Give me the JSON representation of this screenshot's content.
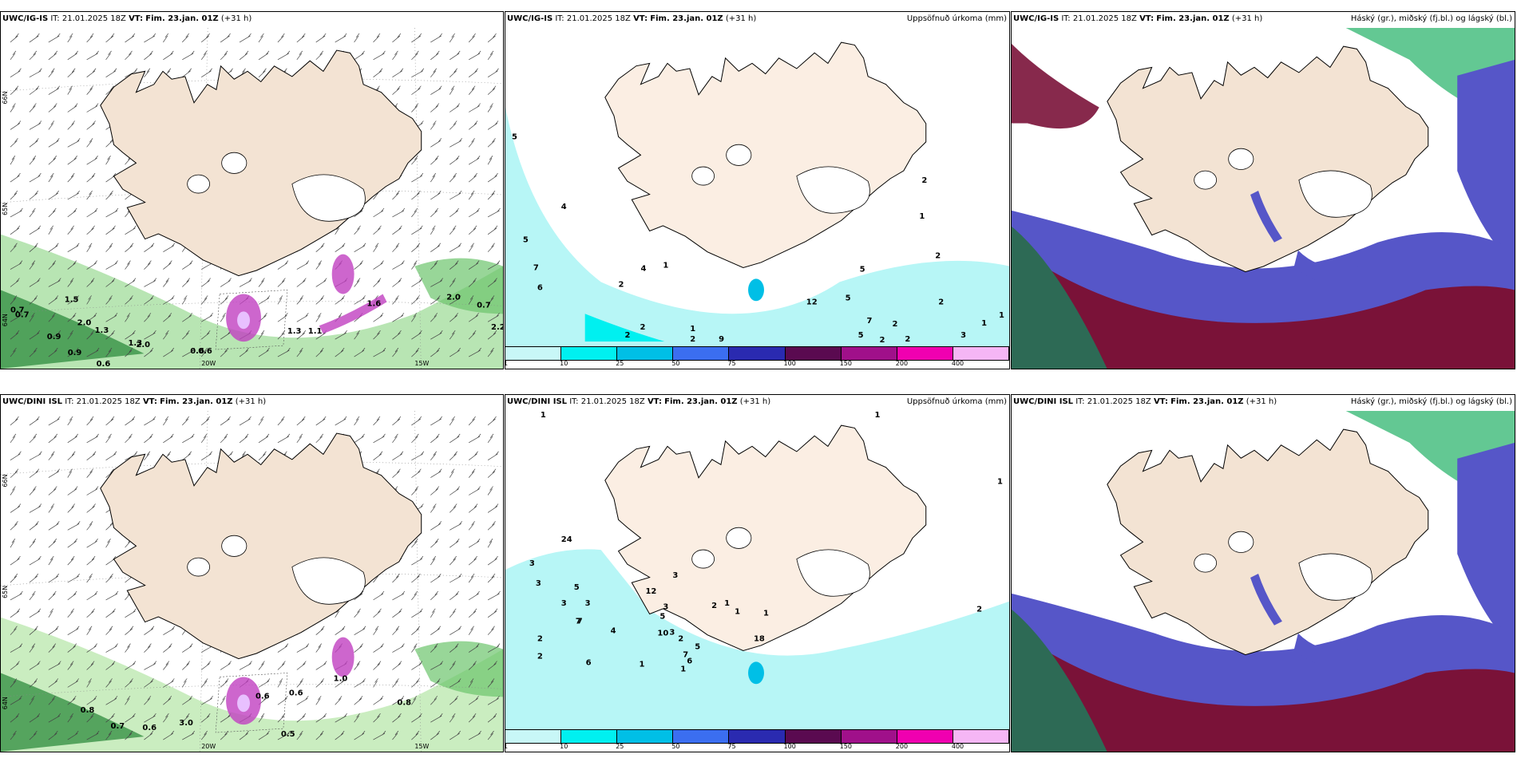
{
  "panels": [
    {
      "model": "UWC/IG-IS",
      "it_label": "IT:",
      "it_value": "21.01.2025 18Z",
      "vt_label": "VT:",
      "vt_value": "Fim. 23.jan. 01Z",
      "lead": "(+31 h)",
      "title_right": "",
      "kind": "wind",
      "lon_labels": [
        "20W",
        "15W"
      ],
      "lat_labels": [
        "66N",
        "65N",
        "64N"
      ],
      "values": [
        "0.7",
        "0.7",
        "0.9",
        "0.9",
        "2.0",
        "1.3",
        "0.6",
        "1.3",
        "2.0",
        "0.6",
        "0.6",
        "1.5",
        "2.0",
        "0.7",
        "2.2",
        "1.1",
        "1.3",
        "1.6"
      ]
    },
    {
      "model": "UWC/IG-IS",
      "it_label": "IT:",
      "it_value": "21.01.2025 18Z",
      "vt_label": "VT:",
      "vt_value": "Fim. 23.jan. 01Z",
      "lead": "(+31 h)",
      "title_right": "Uppsöfnuð úrkoma (mm)",
      "kind": "precip",
      "values": [
        "5",
        "4",
        "5",
        "7",
        "6",
        "2",
        "4",
        "1",
        "2",
        "2",
        "2",
        "1",
        "9",
        "12",
        "5",
        "5",
        "5",
        "2",
        "7",
        "2",
        "2",
        "2",
        "3",
        "1",
        "1",
        "2",
        "1",
        "2"
      ]
    },
    {
      "model": "UWC/IG-IS",
      "it_label": "IT:",
      "it_value": "21.01.2025 18Z",
      "vt_label": "VT:",
      "vt_value": "Fim. 23.jan. 01Z",
      "lead": "(+31 h)",
      "title_right": "Háský (gr.), miðský (fj.bl.) og lágský (bl.)",
      "kind": "cloud"
    },
    {
      "model": "UWC/DINI ISL",
      "it_label": "IT:",
      "it_value": "21.01.2025 18Z",
      "vt_label": "VT:",
      "vt_value": "Fim. 23.jan. 01Z",
      "lead": "(+31 h)",
      "title_right": "",
      "kind": "wind",
      "lon_labels": [
        "20W",
        "15W"
      ],
      "lat_labels": [
        "66N",
        "65N",
        "64N"
      ],
      "values": [
        "0.8",
        "0.7",
        "0.6",
        "3.0",
        "0.5",
        "0.8",
        "0.6",
        "0.6",
        "1.0"
      ]
    },
    {
      "model": "UWC/DINI ISL",
      "it_label": "IT:",
      "it_value": "21.01.2025 18Z",
      "vt_label": "VT:",
      "vt_value": "Fim. 23.jan. 01Z",
      "lead": "(+31 h)",
      "title_right": "Uppsöfnuð úrkoma (mm)",
      "kind": "precip",
      "values": [
        "1",
        "1",
        "1",
        "2",
        "3",
        "3",
        "3",
        "3",
        "24",
        "5",
        "7",
        "2",
        "7",
        "4",
        "2",
        "6",
        "12",
        "3",
        "3",
        "3",
        "5",
        "10",
        "2",
        "7",
        "6",
        "5",
        "1",
        "1",
        "2",
        "1",
        "1",
        "1",
        "18"
      ]
    },
    {
      "model": "UWC/DINI ISL",
      "it_label": "IT:",
      "it_value": "21.01.2025 18Z",
      "vt_label": "VT:",
      "vt_value": "Fim. 23.jan. 01Z",
      "lead": "(+31 h)",
      "title_right": "Háský (gr.), miðský (fj.bl.) og lágský (bl.)",
      "kind": "cloud"
    }
  ],
  "precip_legend": {
    "ticks": [
      "1",
      "10",
      "25",
      "50",
      "75",
      "100",
      "150",
      "200",
      "400"
    ],
    "colors": [
      "#c8f7f7",
      "#00f0f0",
      "#00bfe6",
      "#3b6ef0",
      "#2a2ab0",
      "#5a0a50",
      "#a0108a",
      "#f000b0",
      "#f5b6f5"
    ]
  },
  "colors": {
    "land": "#f3e3d3",
    "land_precip": "#fbeee3",
    "sea_precip": "#b7f6f6",
    "cloud_high": "#3cba78",
    "cloud_mid": "#5656c8",
    "cloud_low": "#7a1238",
    "wind_green": "#2e8b3e",
    "wind_purple": "#c040c0"
  }
}
